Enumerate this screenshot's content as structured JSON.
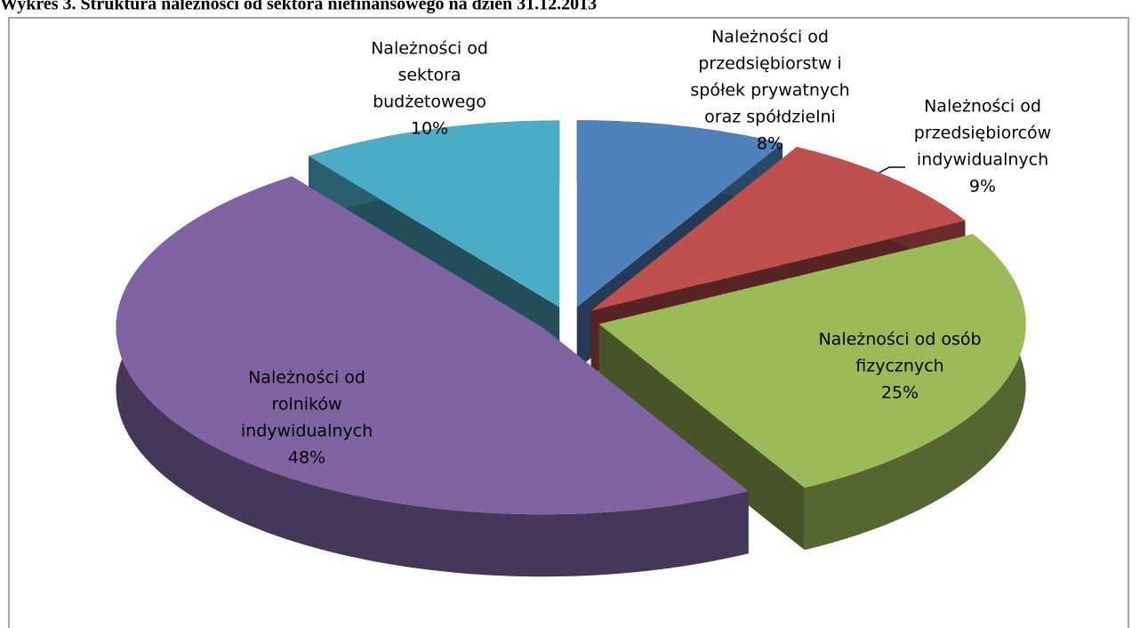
{
  "chart_data": {
    "type": "pie3d",
    "title": "Wykres 3. Struktura należności od sektora niefinansowego na dzień 31.12.2013",
    "categories": [
      [
        "Należności od",
        "przedsiębiorstw i",
        "spółek prywatnych",
        "oraz spółdzielni"
      ],
      [
        "Należności od",
        "przedsiębiorców",
        "indywidualnych"
      ],
      [
        "Należności od osób",
        "fizycznych"
      ],
      [
        "Należności od",
        "rolników",
        "indywidualnych"
      ],
      [
        "Należności od",
        "sektora",
        "budżetowego"
      ]
    ],
    "values": [
      8,
      9,
      25,
      48,
      10
    ],
    "value_labels": [
      "8%",
      "9%",
      "25%",
      "48%",
      "10%"
    ],
    "colors": [
      "#4f81bd",
      "#c0504d",
      "#9bbb59",
      "#8064a2",
      "#4bacc6"
    ]
  }
}
